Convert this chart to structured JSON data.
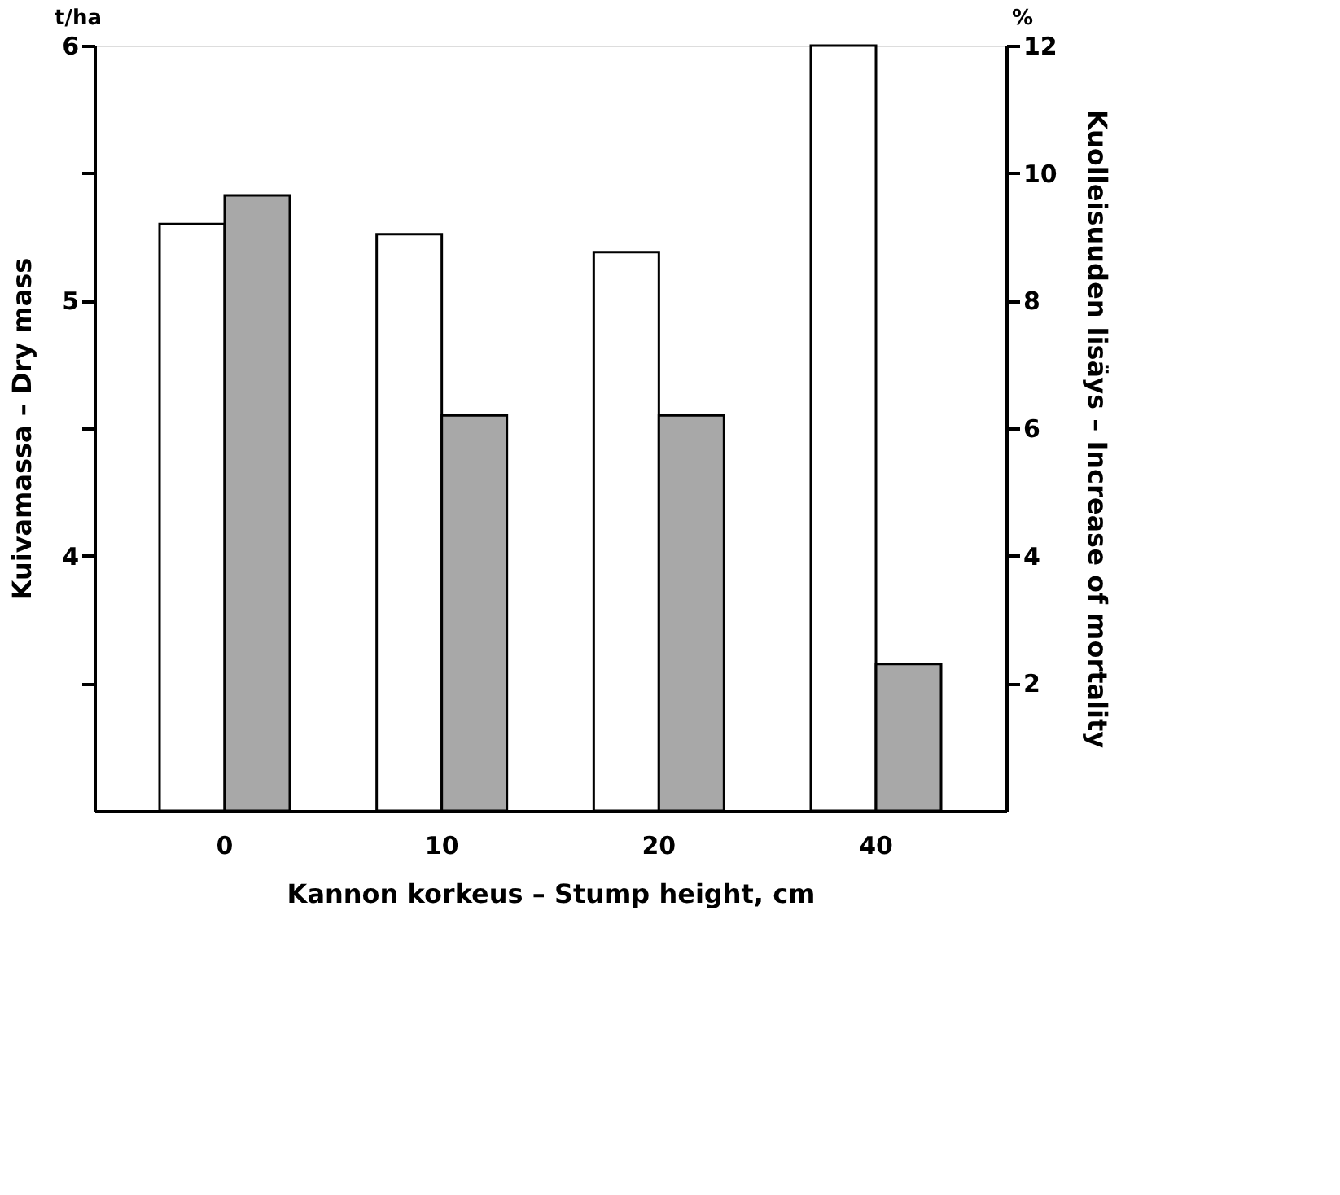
{
  "chart_data": {
    "type": "bar",
    "categories": [
      "0",
      "10",
      "20",
      "40"
    ],
    "xlabel": "Kannon korkeus – Stump height, cm",
    "ylabel": "Kuivamassa – Dry mass",
    "y2label": "Kuolleisuuden lisäys – Increase of mortality",
    "series": [
      {
        "color": "#ffffff",
        "values": [
          5.3,
          5.26,
          5.19,
          6.0
        ]
      },
      {
        "color": "#a8a8a8",
        "values": [
          9.65,
          6.2,
          6.2,
          2.3
        ],
        "axis": "y2"
      }
    ],
    "ylim": [
      3,
      6
    ],
    "yticks": [
      {
        "value": 3.5,
        "label": null
      },
      4,
      {
        "value": 4.5,
        "label": null
      },
      5,
      {
        "value": 5.5,
        "label": null
      },
      6
    ],
    "y2lim": [
      0,
      12
    ],
    "y2ticks": [
      2,
      4,
      6,
      8,
      10,
      12
    ],
    "annotations": [
      "t/ha",
      "%"
    ],
    "grid": false
  }
}
